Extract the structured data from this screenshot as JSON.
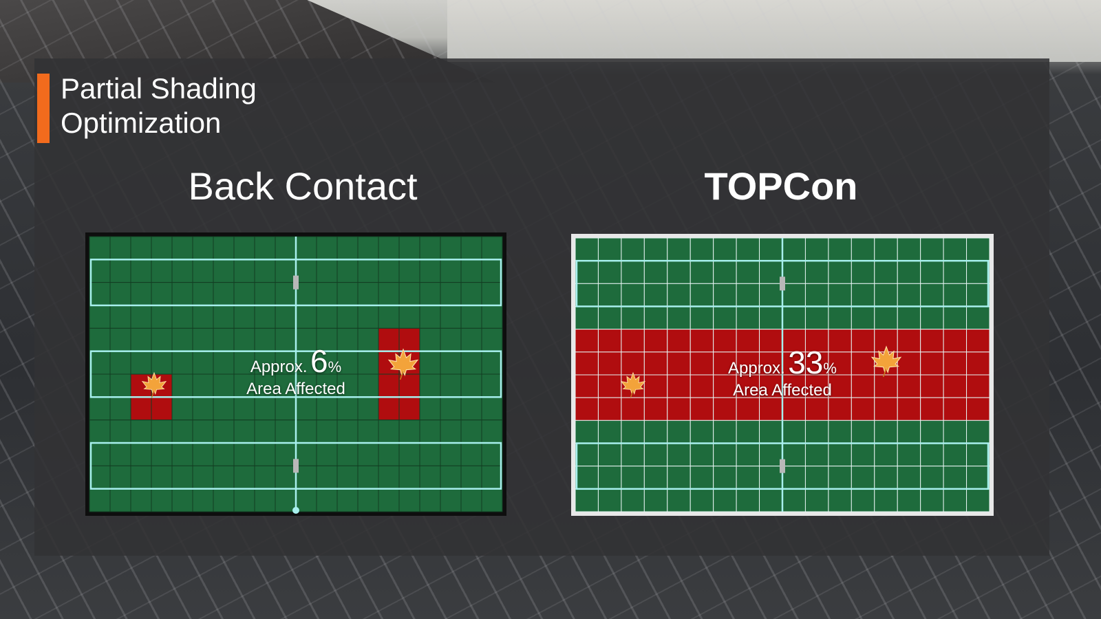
{
  "title": {
    "line1": "Partial Shading",
    "line2": "Optimization"
  },
  "colors": {
    "accent": "#f26b1d",
    "cell_ok": "#1e6b3c",
    "cell_shaded": "#b00d0f",
    "busbar": "#a8f0ee"
  },
  "panels": [
    {
      "heading": "Back Contact",
      "approx": "Approx.",
      "value": "6",
      "unit": "%",
      "caption": "Area Affected",
      "leaf_icon": "maple-leaf-icon"
    },
    {
      "heading": "TOPCon",
      "approx": "Approx.",
      "value": "33",
      "unit": "%",
      "caption": "Area Affected",
      "leaf_icon": "maple-leaf-icon"
    }
  ]
}
